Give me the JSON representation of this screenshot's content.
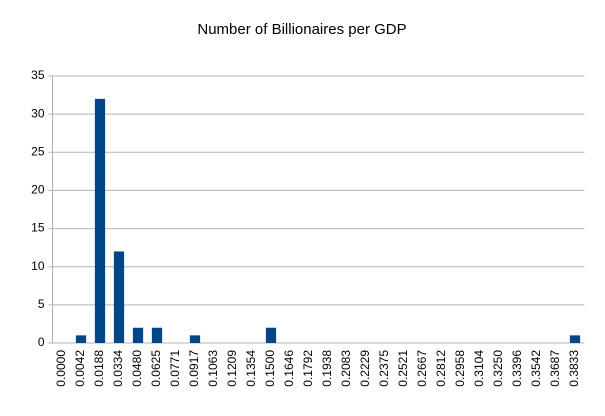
{
  "chart_data": {
    "type": "bar",
    "title": "Number of Billionaires per GDP",
    "categories": [
      "0.0000",
      "0.0042",
      "0.0188",
      "0.0334",
      "0.0480",
      "0.0625",
      "0.0771",
      "0.0917",
      "0.1063",
      "0.1209",
      "0.1354",
      "0.1500",
      "0.1646",
      "0.1792",
      "0.1938",
      "0.2083",
      "0.2229",
      "0.2375",
      "0.2521",
      "0.2667",
      "0.2812",
      "0.2958",
      "0.3104",
      "0.3250",
      "0.3396",
      "0.3542",
      "0.3687",
      "0.3833"
    ],
    "values": [
      0,
      1,
      32,
      12,
      2,
      2,
      0,
      1,
      0,
      0,
      0,
      2,
      0,
      0,
      0,
      0,
      0,
      0,
      0,
      0,
      0,
      0,
      0,
      0,
      0,
      0,
      0,
      1
    ],
    "color": "#004586",
    "ylim": [
      0,
      35
    ],
    "yticks": [
      0,
      5,
      10,
      15,
      20,
      25,
      30,
      35
    ],
    "grid": true
  }
}
